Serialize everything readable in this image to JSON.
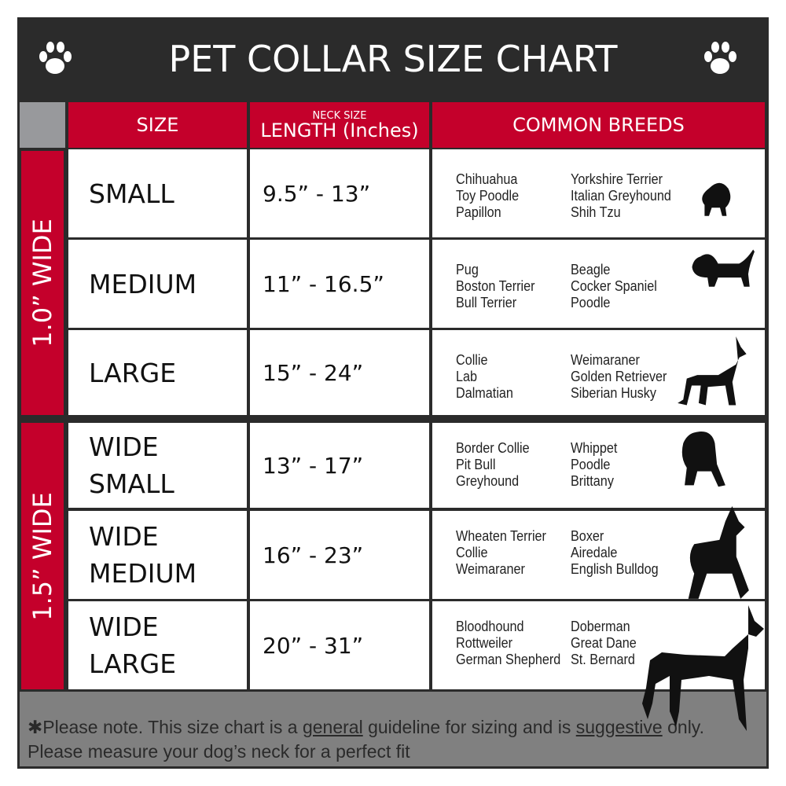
{
  "title": "PET COLLAR SIZE CHART",
  "icons": {
    "left": "paw-icon",
    "right": "paw-icon"
  },
  "colors": {
    "header_bg": "#2b2b2b",
    "accent_red": "#c4002b",
    "footer_bg": "#808080"
  },
  "columns": {
    "size": "SIZE",
    "length_sub": "NECK SIZE",
    "length": "LENGTH (Inches)",
    "breeds": "COMMON BREEDS"
  },
  "groups": [
    {
      "label": "1.0” WIDE"
    },
    {
      "label": "1.5” WIDE"
    }
  ],
  "rows": [
    {
      "size": "SMALL",
      "length": "9.5” - 13”",
      "breeds_a": [
        "Chihuahua",
        "Toy Poodle",
        "Papillon"
      ],
      "breeds_b": [
        "Yorkshire Terrier",
        "Italian Greyhound",
        "Shih Tzu"
      ]
    },
    {
      "size": "MEDIUM",
      "length": "11” - 16.5”",
      "breeds_a": [
        "Pug",
        "Boston Terrier",
        "Bull Terrier"
      ],
      "breeds_b": [
        "Beagle",
        "Cocker Spaniel",
        "Poodle"
      ]
    },
    {
      "size": "LARGE",
      "length": "15” - 24”",
      "breeds_a": [
        "Collie",
        "Lab",
        "Dalmatian"
      ],
      "breeds_b": [
        "Weimaraner",
        "Golden Retriever",
        "Siberian Husky"
      ]
    },
    {
      "size": "WIDE SMALL",
      "length": "13” - 17”",
      "breeds_a": [
        "Border Collie",
        "Pit Bull",
        "Greyhound"
      ],
      "breeds_b": [
        "Whippet",
        "Poodle",
        "Brittany"
      ]
    },
    {
      "size": "WIDE MEDIUM",
      "length": "16” - 23”",
      "breeds_a": [
        "Wheaten Terrier",
        "Collie",
        "Weimaraner"
      ],
      "breeds_b": [
        "Boxer",
        "Airedale",
        "English Bulldog"
      ]
    },
    {
      "size": "WIDE LARGE",
      "length": "20” - 31”",
      "breeds_a": [
        "Bloodhound",
        "Rottweiler",
        "German Shepherd"
      ],
      "breeds_b": [
        "Doberman",
        "Great Dane",
        "St. Bernard"
      ]
    }
  ],
  "footer": {
    "p1": "✱Please note. This size chart is a ",
    "u1": "general",
    "p2": " guideline for sizing and is ",
    "u2": "suggestive",
    "p3": " only.",
    "line2": "Please measure your dog’s neck for a perfect fit"
  }
}
